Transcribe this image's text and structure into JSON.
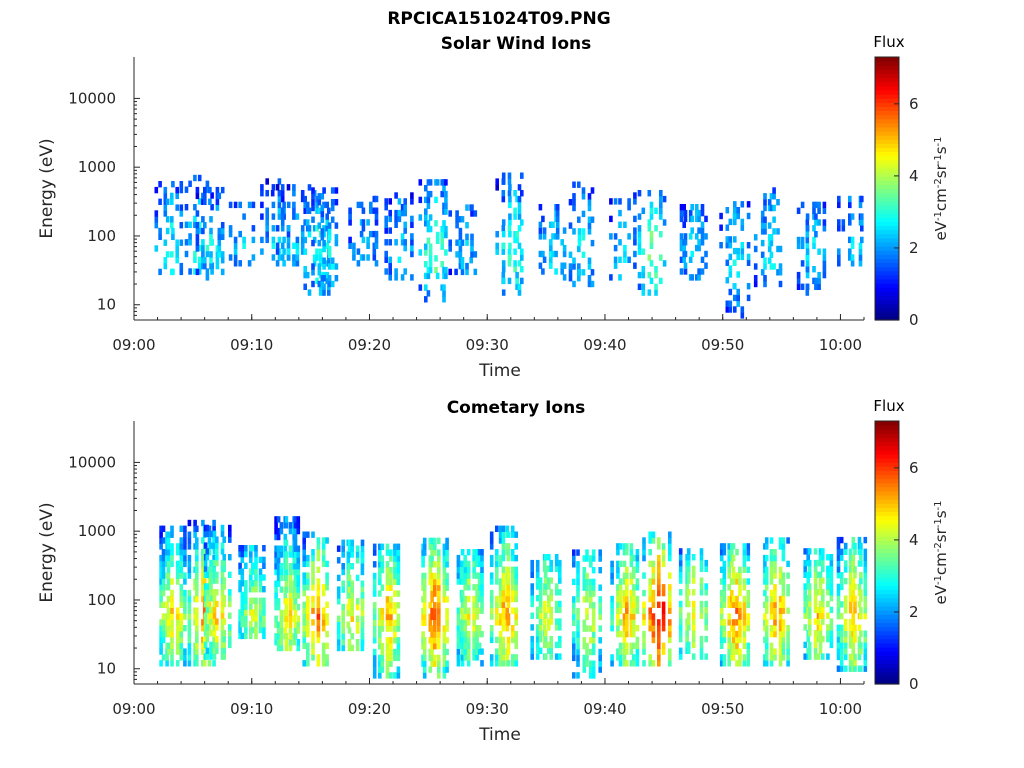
{
  "figure": {
    "title": "RPCICA151024T09.PNG"
  },
  "chart_data": [
    {
      "type": "heatmap",
      "title": "Solar Wind Ions",
      "xlabel": "Time",
      "ylabel": "Energy (eV)",
      "yscale": "log",
      "ylim": [
        6,
        40000
      ],
      "xlim": [
        "09:00",
        "10:02"
      ],
      "x_ticks": [
        "09:00",
        "09:10",
        "09:20",
        "09:30",
        "09:40",
        "09:50",
        "10:00"
      ],
      "y_ticks": [
        "10",
        "100",
        "1000",
        "10000"
      ],
      "colorbar": {
        "title": "Flux",
        "label": "eV-1cm-2sr-1s-1",
        "range": [
          0,
          7.3
        ],
        "ticks": [
          "0",
          "2",
          "4",
          "6"
        ],
        "colormap": "jet"
      },
      "bursts": [
        {
          "t": 3.0,
          "lo": 30,
          "hi": 600,
          "peak": 3.0
        },
        {
          "t": 5.5,
          "lo": 25,
          "hi": 700,
          "peak": 3.2
        },
        {
          "t": 6.5,
          "lo": 30,
          "hi": 500,
          "peak": 2.8
        },
        {
          "t": 9.2,
          "lo": 40,
          "hi": 400,
          "peak": 2.5
        },
        {
          "t": 12.0,
          "lo": 40,
          "hi": 700,
          "peak": 2.8
        },
        {
          "t": 13.3,
          "lo": 40,
          "hi": 600,
          "peak": 2.6
        },
        {
          "t": 15.5,
          "lo": 15,
          "hi": 600,
          "peak": 3.2
        },
        {
          "t": 16.3,
          "lo": 20,
          "hi": 500,
          "peak": 2.8
        },
        {
          "t": 19.5,
          "lo": 40,
          "hi": 400,
          "peak": 2.4
        },
        {
          "t": 22.5,
          "lo": 25,
          "hi": 450,
          "peak": 2.6
        },
        {
          "t": 25.5,
          "lo": 12,
          "hi": 700,
          "peak": 3.6
        },
        {
          "t": 28.0,
          "lo": 30,
          "hi": 300,
          "peak": 2.4
        },
        {
          "t": 32.0,
          "lo": 15,
          "hi": 800,
          "peak": 3.4
        },
        {
          "t": 35.5,
          "lo": 25,
          "hi": 300,
          "peak": 2.6
        },
        {
          "t": 38.0,
          "lo": 20,
          "hi": 600,
          "peak": 2.8
        },
        {
          "t": 41.5,
          "lo": 25,
          "hi": 400,
          "peak": 2.6
        },
        {
          "t": 44.0,
          "lo": 15,
          "hi": 450,
          "peak": 3.8
        },
        {
          "t": 47.5,
          "lo": 25,
          "hi": 300,
          "peak": 2.6
        },
        {
          "t": 51.0,
          "lo": 7,
          "hi": 350,
          "peak": 2.8
        },
        {
          "t": 54.0,
          "lo": 20,
          "hi": 500,
          "peak": 2.8
        },
        {
          "t": 57.5,
          "lo": 15,
          "hi": 300,
          "peak": 2.6
        },
        {
          "t": 61.0,
          "lo": 40,
          "hi": 400,
          "peak": 2.6
        }
      ]
    },
    {
      "type": "heatmap",
      "title": "Cometary Ions",
      "xlabel": "Time",
      "ylabel": "Energy (eV)",
      "yscale": "log",
      "ylim": [
        6,
        40000
      ],
      "xlim": [
        "09:00",
        "10:02"
      ],
      "x_ticks": [
        "09:00",
        "09:10",
        "09:20",
        "09:30",
        "09:40",
        "09:50",
        "10:00"
      ],
      "y_ticks": [
        "10",
        "100",
        "1000",
        "10000"
      ],
      "colorbar": {
        "title": "Flux",
        "label": "eV-1cm-2sr-1s-1",
        "range": [
          0,
          7.3
        ],
        "ticks": [
          "0",
          "2",
          "4",
          "6"
        ],
        "colormap": "jet"
      },
      "bursts": [
        {
          "t": 3.2,
          "lo": 12,
          "hi": 1200,
          "peak": 5.0
        },
        {
          "t": 5.8,
          "lo": 12,
          "hi": 1500,
          "peak": 5.6
        },
        {
          "t": 7.0,
          "lo": 15,
          "hi": 1200,
          "peak": 5.0
        },
        {
          "t": 10.0,
          "lo": 30,
          "hi": 600,
          "peak": 4.3
        },
        {
          "t": 13.0,
          "lo": 20,
          "hi": 1500,
          "peak": 4.8
        },
        {
          "t": 15.5,
          "lo": 12,
          "hi": 1000,
          "peak": 5.8
        },
        {
          "t": 18.5,
          "lo": 20,
          "hi": 800,
          "peak": 4.8
        },
        {
          "t": 21.5,
          "lo": 8,
          "hi": 700,
          "peak": 5.3
        },
        {
          "t": 25.5,
          "lo": 8,
          "hi": 800,
          "peak": 6.2
        },
        {
          "t": 28.5,
          "lo": 12,
          "hi": 500,
          "peak": 4.8
        },
        {
          "t": 31.5,
          "lo": 12,
          "hi": 1200,
          "peak": 5.6
        },
        {
          "t": 35.0,
          "lo": 15,
          "hi": 500,
          "peak": 4.6
        },
        {
          "t": 38.5,
          "lo": 8,
          "hi": 500,
          "peak": 4.6
        },
        {
          "t": 41.8,
          "lo": 12,
          "hi": 700,
          "peak": 5.3
        },
        {
          "t": 44.5,
          "lo": 12,
          "hi": 900,
          "peak": 7.0
        },
        {
          "t": 47.5,
          "lo": 15,
          "hi": 600,
          "peak": 5.0
        },
        {
          "t": 51.0,
          "lo": 12,
          "hi": 700,
          "peak": 5.8
        },
        {
          "t": 54.5,
          "lo": 12,
          "hi": 800,
          "peak": 5.6
        },
        {
          "t": 58.0,
          "lo": 15,
          "hi": 600,
          "peak": 5.0
        },
        {
          "t": 61.0,
          "lo": 10,
          "hi": 800,
          "peak": 5.3
        }
      ]
    }
  ]
}
